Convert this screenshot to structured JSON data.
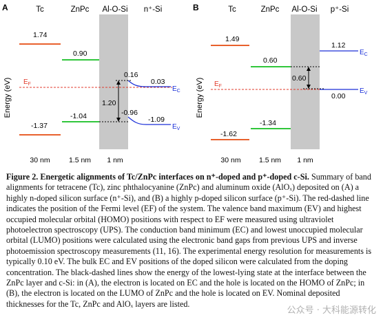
{
  "panels": [
    {
      "letter": "A",
      "columns": [
        "Tc",
        "ZnPc",
        "Al-O-Si",
        "n⁺-Si"
      ],
      "ylabel": "Energy (eV)",
      "fermi_label": "E",
      "fermi_sub": "F",
      "levels": {
        "tc_lumo": "1.74",
        "znpc_lumo": "0.90",
        "si_c_interface": "0.16",
        "ec": "0.03",
        "gap": "1.20",
        "znpc_homo": "-1.04",
        "si_v_interface": "-0.96",
        "ev": "-1.09",
        "tc_homo": "-1.37"
      },
      "band_c": "E",
      "band_c_sub": "C",
      "band_v": "E",
      "band_v_sub": "V",
      "thickness": [
        "30 nm",
        "1.5 nm",
        "1 nm"
      ]
    },
    {
      "letter": "B",
      "columns": [
        "Tc",
        "ZnPc",
        "Al-O-Si",
        "p⁺-Si"
      ],
      "ylabel": "Energy (eV)",
      "fermi_label": "E",
      "fermi_sub": "F",
      "levels": {
        "tc_lumo": "1.49",
        "znpc_lumo": "0.60",
        "gap": "0.60",
        "ec": "1.12",
        "ev": "0.00",
        "znpc_homo": "-1.34",
        "tc_homo": "-1.62"
      },
      "band_c": "E",
      "band_c_sub": "C",
      "band_v": "E",
      "band_v_sub": "V",
      "thickness": [
        "30 nm",
        "1.5 nm",
        "1 nm"
      ]
    }
  ],
  "caption": {
    "title": "Figure 2. Energetic alignments of Tc/ZnPc interfaces on n⁺-doped and p⁺-doped c-Si.",
    "body": "Summary of band alignments for tetracene (Tc), zinc phthalocyanine (ZnPc) and aluminum oxide (AlOₓ) deposited on (A) a highly n-doped silicon surface (n⁺-Si), and (B) a highly p-doped silicon surface (p⁺-Si). The red-dashed line indicates the position of the Fermi level (EF) of the system. The valence band maximum (EV) and highest occupied molecular orbital (HOMO) positions with respect to EF were measured using ultraviolet photoelectron spectroscopy (UPS). The conduction band minimum (EC) and lowest unoccupied molecular orbital (LUMO) positions were calculated using the electronic band gaps from previous UPS and inverse photoemission spectroscopy measurements (11, 16). The experimental energy resolution for measurements is typically 0.10 eV. The bulk EC and EV positions of the doped silicon were calculated from the doping concentration. The black-dashed lines show the energy of the lowest-lying state at the interface between the ZnPc layer and c-Si: in (A), the electron is located on EC and the hole is located on the HOMO of ZnPc; in (B), the electron is located on the LUMO of ZnPc and the hole is located on EV. Nominal deposited thicknesses for the Tc, ZnPc and AlOₓ layers are listed."
  },
  "watermark": "公众号 · 大科能源转化"
}
